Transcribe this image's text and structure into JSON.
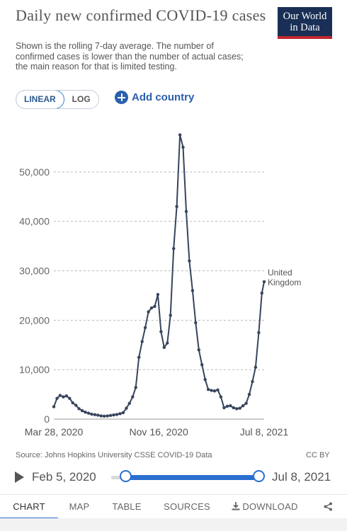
{
  "title": "Daily new confirmed COVID-19 cases",
  "subtitle": "Shown is the rolling 7-day average. The number of confirmed cases is lower than the number of actual cases; the main reason for that is limited testing.",
  "logo": {
    "line1": "Our World",
    "line2": "in Data",
    "bg_color": "#1a2f55",
    "accent_color": "#c1272d"
  },
  "scale_toggle": {
    "linear": "LINEAR",
    "log": "LOG",
    "active": "LINEAR"
  },
  "add_country": {
    "label": "Add country",
    "icon": "plus-circle-icon"
  },
  "chart_data": {
    "type": "line",
    "series": [
      {
        "name": "United Kingdom",
        "color": "#37445c",
        "x": [
          "2020-03-28",
          "2020-04-04",
          "2020-04-11",
          "2020-04-18",
          "2020-04-25",
          "2020-05-02",
          "2020-05-09",
          "2020-05-16",
          "2020-05-23",
          "2020-05-30",
          "2020-06-06",
          "2020-06-13",
          "2020-06-20",
          "2020-06-27",
          "2020-07-04",
          "2020-07-11",
          "2020-07-18",
          "2020-07-25",
          "2020-08-01",
          "2020-08-08",
          "2020-08-15",
          "2020-08-22",
          "2020-08-29",
          "2020-09-05",
          "2020-09-12",
          "2020-09-19",
          "2020-09-26",
          "2020-10-03",
          "2020-10-10",
          "2020-10-17",
          "2020-10-24",
          "2020-10-31",
          "2020-11-07",
          "2020-11-14",
          "2020-11-21",
          "2020-11-28",
          "2020-12-05",
          "2020-12-12",
          "2020-12-19",
          "2020-12-26",
          "2021-01-02",
          "2021-01-09",
          "2021-01-16",
          "2021-01-23",
          "2021-01-30",
          "2021-02-06",
          "2021-02-13",
          "2021-02-20",
          "2021-02-27",
          "2021-03-06",
          "2021-03-13",
          "2021-03-20",
          "2021-03-27",
          "2021-04-03",
          "2021-04-10",
          "2021-04-17",
          "2021-04-24",
          "2021-05-01",
          "2021-05-08",
          "2021-05-15",
          "2021-05-22",
          "2021-05-29",
          "2021-06-05",
          "2021-06-12",
          "2021-06-19",
          "2021-06-26",
          "2021-07-03",
          "2021-07-08"
        ],
        "values": [
          2500,
          4200,
          4800,
          4500,
          4700,
          4200,
          3300,
          2800,
          2100,
          1700,
          1400,
          1200,
          1000,
          900,
          800,
          650,
          600,
          650,
          750,
          850,
          950,
          1100,
          1300,
          2200,
          3200,
          4500,
          6400,
          12500,
          15700,
          18500,
          21700,
          22500,
          22800,
          25200,
          17700,
          14500,
          15400,
          21000,
          34500,
          43000,
          57500,
          55000,
          42000,
          32000,
          26000,
          19500,
          14000,
          11000,
          8000,
          6000,
          5800,
          5700,
          5900,
          4500,
          2300,
          2600,
          2700,
          2300,
          2100,
          2200,
          2700,
          3200,
          5000,
          7600,
          10500,
          17500,
          25500,
          27800
        ]
      }
    ],
    "xlabel": "",
    "ylabel": "",
    "x_tick_labels": [
      "Mar 28, 2020",
      "Nov 16, 2020",
      "Jul 8, 2021"
    ],
    "y_tick_labels": [
      "0",
      "10,000",
      "20,000",
      "30,000",
      "40,000",
      "50,000"
    ],
    "y_ticks": [
      0,
      10000,
      20000,
      30000,
      40000,
      50000
    ],
    "ylim": [
      0,
      60000
    ],
    "xlim": [
      "2020-03-28",
      "2021-07-08"
    ],
    "end_label": [
      "United",
      "Kingdom"
    ],
    "grid": "horizontal dashed",
    "legend": "inline at line end (right)"
  },
  "source": "Source: Johns Hopkins University CSSE COVID-19 Data",
  "license": "CC BY",
  "timeline": {
    "start_label": "Feb 5, 2020",
    "end_label": "Jul 8, 2021",
    "play_icon": "play-icon",
    "range_start_fraction": 0.0,
    "range_end_fraction": 1.0
  },
  "tabs": [
    {
      "label": "CHART",
      "active": true
    },
    {
      "label": "MAP",
      "active": false
    },
    {
      "label": "TABLE",
      "active": false
    },
    {
      "label": "SOURCES",
      "active": false
    },
    {
      "label": "DOWNLOAD",
      "active": false,
      "icon": "download-icon"
    },
    {
      "label": "",
      "active": false,
      "icon": "share-icon"
    }
  ],
  "colors": {
    "accent": "#2a6fcf",
    "link": "#2a5fad",
    "grid": "#bbbbbb"
  }
}
